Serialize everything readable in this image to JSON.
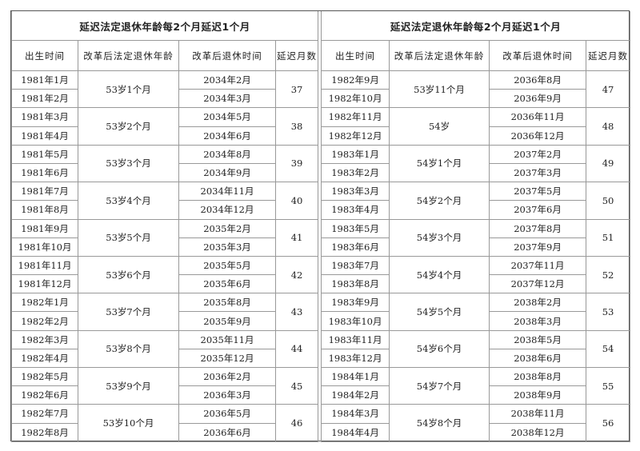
{
  "tables": [
    {
      "title": "延迟法定退休年龄每2个月延迟1个月",
      "headers": [
        "出生时间",
        "改革后法定退休年龄",
        "改革后退休时间",
        "延迟月数"
      ],
      "groups": [
        {
          "births": [
            "1981年1月",
            "1981年2月"
          ],
          "age": "53岁1个月",
          "retire": [
            "2034年2月",
            "2034年3月"
          ],
          "months": "37"
        },
        {
          "births": [
            "1981年3月",
            "1981年4月"
          ],
          "age": "53岁2个月",
          "retire": [
            "2034年5月",
            "2034年6月"
          ],
          "months": "38"
        },
        {
          "births": [
            "1981年5月",
            "1981年6月"
          ],
          "age": "53岁3个月",
          "retire": [
            "2034年8月",
            "2034年9月"
          ],
          "months": "39"
        },
        {
          "births": [
            "1981年7月",
            "1981年8月"
          ],
          "age": "53岁4个月",
          "retire": [
            "2034年11月",
            "2034年12月"
          ],
          "months": "40"
        },
        {
          "births": [
            "1981年9月",
            "1981年10月"
          ],
          "age": "53岁5个月",
          "retire": [
            "2035年2月",
            "2035年3月"
          ],
          "months": "41"
        },
        {
          "births": [
            "1981年11月",
            "1981年12月"
          ],
          "age": "53岁6个月",
          "retire": [
            "2035年5月",
            "2035年6月"
          ],
          "months": "42"
        },
        {
          "births": [
            "1982年1月",
            "1982年2月"
          ],
          "age": "53岁7个月",
          "retire": [
            "2035年8月",
            "2035年9月"
          ],
          "months": "43"
        },
        {
          "births": [
            "1982年3月",
            "1982年4月"
          ],
          "age": "53岁8个月",
          "retire": [
            "2035年11月",
            "2035年12月"
          ],
          "months": "44"
        },
        {
          "births": [
            "1982年5月",
            "1982年6月"
          ],
          "age": "53岁9个月",
          "retire": [
            "2036年2月",
            "2036年3月"
          ],
          "months": "45"
        },
        {
          "births": [
            "1982年7月",
            "1982年8月"
          ],
          "age": "53岁10个月",
          "retire": [
            "2036年5月",
            "2036年6月"
          ],
          "months": "46"
        }
      ]
    },
    {
      "title": "延迟法定退休年龄每2个月延迟1个月",
      "headers": [
        "出生时间",
        "改革后法定退休年龄",
        "改革后退休时间",
        "延迟月数"
      ],
      "groups": [
        {
          "births": [
            "1982年9月",
            "1982年10月"
          ],
          "age": "53岁11个月",
          "retire": [
            "2036年8月",
            "2036年9月"
          ],
          "months": "47"
        },
        {
          "births": [
            "1982年11月",
            "1982年12月"
          ],
          "age": "54岁",
          "retire": [
            "2036年11月",
            "2036年12月"
          ],
          "months": "48"
        },
        {
          "births": [
            "1983年1月",
            "1983年2月"
          ],
          "age": "54岁1个月",
          "retire": [
            "2037年2月",
            "2037年3月"
          ],
          "months": "49"
        },
        {
          "births": [
            "1983年3月",
            "1983年4月"
          ],
          "age": "54岁2个月",
          "retire": [
            "2037年5月",
            "2037年6月"
          ],
          "months": "50"
        },
        {
          "births": [
            "1983年5月",
            "1983年6月"
          ],
          "age": "54岁3个月",
          "retire": [
            "2037年8月",
            "2037年9月"
          ],
          "months": "51"
        },
        {
          "births": [
            "1983年7月",
            "1983年8月"
          ],
          "age": "54岁4个月",
          "retire": [
            "2037年11月",
            "2037年12月"
          ],
          "months": "52"
        },
        {
          "births": [
            "1983年9月",
            "1983年10月"
          ],
          "age": "54岁5个月",
          "retire": [
            "2038年2月",
            "2038年3月"
          ],
          "months": "53"
        },
        {
          "births": [
            "1983年11月",
            "1983年12月"
          ],
          "age": "54岁6个月",
          "retire": [
            "2038年5月",
            "2038年6月"
          ],
          "months": "54"
        },
        {
          "births": [
            "1984年1月",
            "1984年2月"
          ],
          "age": "54岁7个月",
          "retire": [
            "2038年8月",
            "2038年9月"
          ],
          "months": "55"
        },
        {
          "births": [
            "1984年3月",
            "1984年4月"
          ],
          "age": "54岁8个月",
          "retire": [
            "2038年11月",
            "2038年12月"
          ],
          "months": "56"
        }
      ]
    }
  ]
}
